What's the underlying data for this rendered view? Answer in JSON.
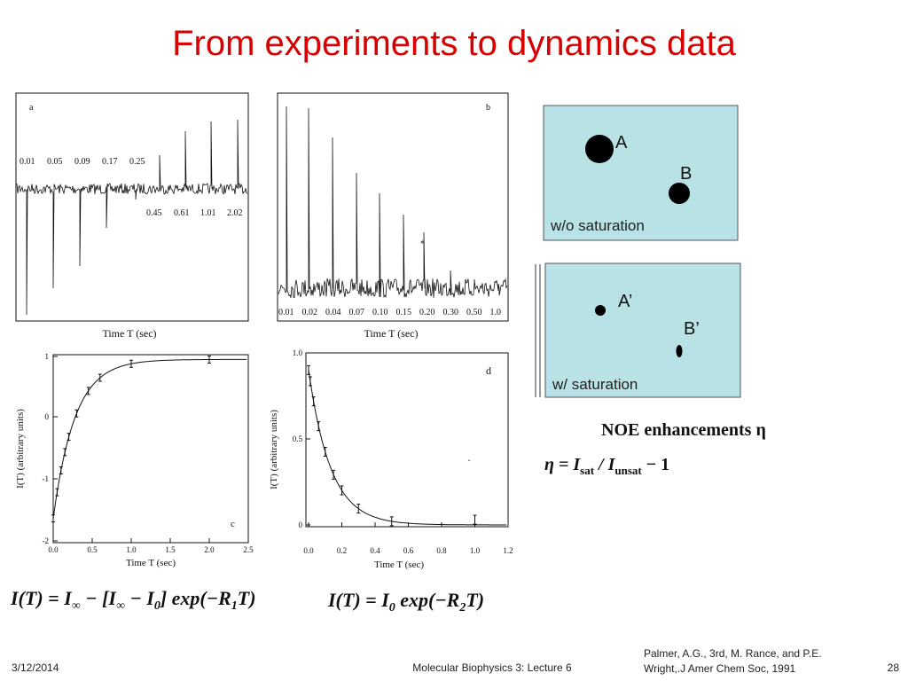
{
  "title": "From experiments to dynamics data",
  "panel_a": {
    "label": "a",
    "top_labels": [
      "0.01",
      "0.05",
      "0.09",
      "0.17",
      "0.25"
    ],
    "bottom_labels": [
      "0.45",
      "0.61",
      "1.01",
      "2.02"
    ],
    "x_label": "Time  T  (sec)"
  },
  "panel_b": {
    "label": "b",
    "labels": [
      "0.01",
      "0.02",
      "0.04",
      "0.07",
      "0.10",
      "0.15",
      "0.20",
      "0.30",
      "0.50",
      "1.0"
    ],
    "star": "*",
    "x_label": "Time  T  (sec)"
  },
  "panel_c": {
    "label": "c",
    "y_label": "I(T)  (arbitrary units)",
    "x_label": "Time T (sec)",
    "yticks": [
      "1",
      "0",
      "-1",
      "-2"
    ],
    "xticks": [
      "0.0",
      "0.5",
      "1.0",
      "1.5",
      "2.0",
      "2.5"
    ]
  },
  "panel_d": {
    "label": "d",
    "y_label": "I(T)  (arbitrary units)",
    "x_label": "Time T (sec)",
    "yticks": [
      "1.0",
      "0.5",
      "0"
    ],
    "xticks": [
      "0.0",
      "0.2",
      "0.4",
      "0.6",
      "0.8",
      "1.0",
      "1.2"
    ]
  },
  "equations": {
    "left": [
      "I(T) = I",
      "∞",
      " − [I",
      "∞",
      " − I",
      "0",
      "] exp(−R",
      "1",
      "T)"
    ],
    "right": [
      "I(T) = I",
      "0",
      " exp(−R",
      "2",
      "T)"
    ],
    "noe_title": "NOE enhancements η",
    "noe": [
      "η = I",
      "sat",
      " / I",
      "unsat",
      " − 1"
    ]
  },
  "noe_boxes": {
    "unsaturated": {
      "a": "A",
      "b": "B",
      "caption": "w/o saturation"
    },
    "saturated": {
      "a": "A’",
      "b": "B’",
      "caption": "w/ saturation"
    }
  },
  "footer": {
    "date": "3/12/2014",
    "course": "Molecular Biophysics 3: Lecture 6",
    "citation": [
      "Palmer, A.G., 3rd, M. Rance, and P.E.",
      "Wright,.J Amer Chem Soc, 1991"
    ],
    "page": "28"
  }
}
